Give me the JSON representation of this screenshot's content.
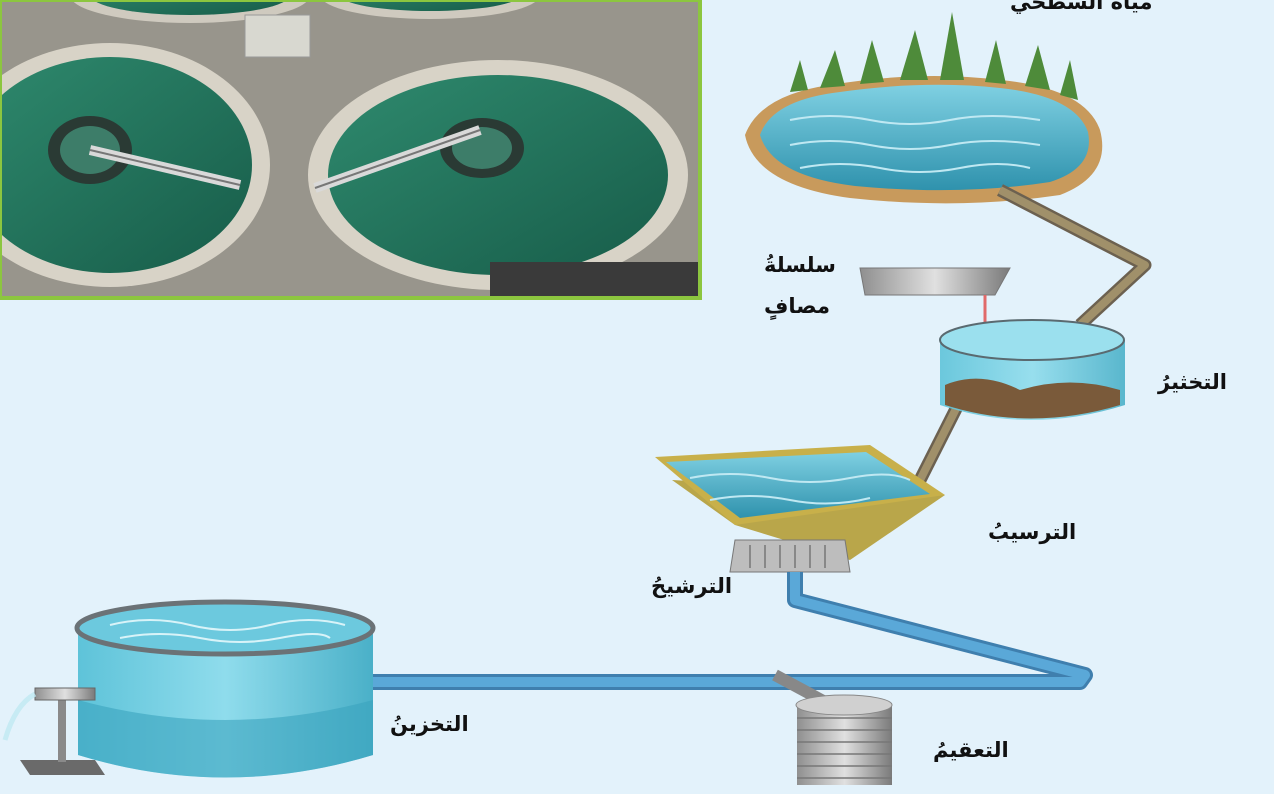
{
  "labels": {
    "source": "مياهٌ السطحي",
    "chain_line1": "سلسلةُ",
    "chain_line2": "مصافٍ",
    "coagulation": "التخثيرُ",
    "sedimentation": "الترسيبُ",
    "filtration": "الترشيحُ",
    "storage": "التخزينُ",
    "disinfection": "التعقيمُ"
  },
  "colors": {
    "background": "#e3f2fb",
    "photo_border": "#8cc63f",
    "water": "#4fb3c9",
    "pipe_blue": "#5aa8d8",
    "pipe_brown": "#a0906a",
    "sediment": "#7a5a3a"
  }
}
